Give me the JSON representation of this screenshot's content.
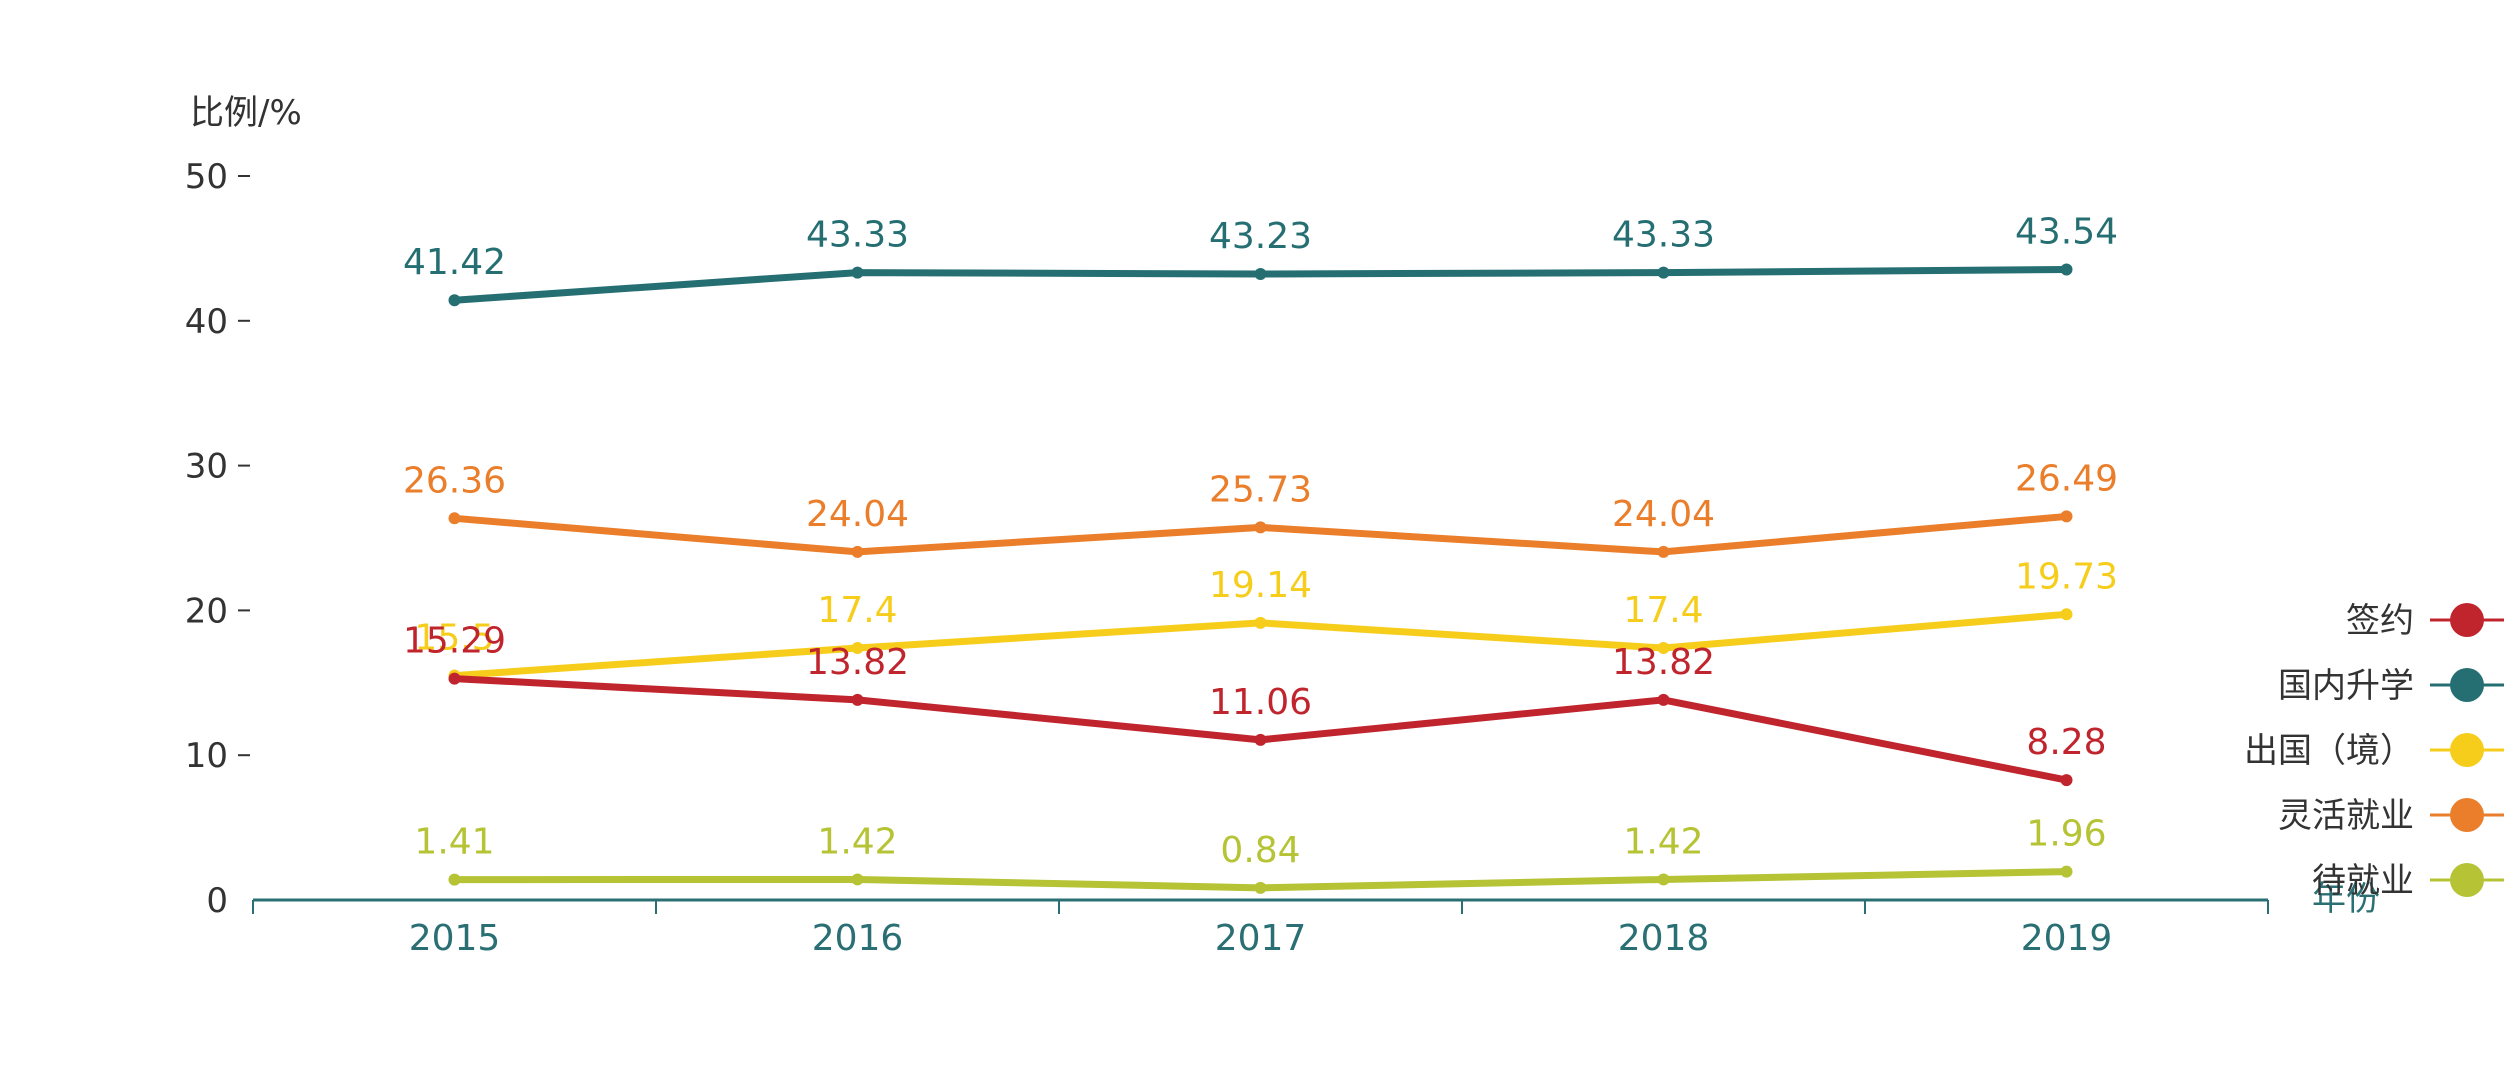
{
  "chart_data": {
    "type": "line",
    "ylabel": "比例/%",
    "xlabel": "年份",
    "categories": [
      "2015",
      "2016",
      "2017",
      "2018",
      "2019"
    ],
    "ylim": [
      0,
      50
    ],
    "yticks": [
      0,
      10,
      20,
      30,
      40,
      50
    ],
    "grid": false,
    "legend_position": "right",
    "series": [
      {
        "name": "签约",
        "color": "#c0252e",
        "values": [
          15.29,
          13.82,
          11.06,
          13.82,
          8.28
        ]
      },
      {
        "name": "国内升学",
        "color": "#256f73",
        "values": [
          41.42,
          43.33,
          43.23,
          43.33,
          43.54
        ]
      },
      {
        "name": "出国（境）",
        "color": "#f7cd1c",
        "values": [
          15.5,
          17.4,
          19.14,
          17.4,
          19.73
        ]
      },
      {
        "name": "灵活就业",
        "color": "#ea7e2b",
        "values": [
          26.36,
          24.04,
          25.73,
          24.04,
          26.49
        ]
      },
      {
        "name": "待就业",
        "color": "#b5c334",
        "values": [
          1.41,
          1.42,
          0.84,
          1.42,
          1.96
        ]
      }
    ]
  }
}
